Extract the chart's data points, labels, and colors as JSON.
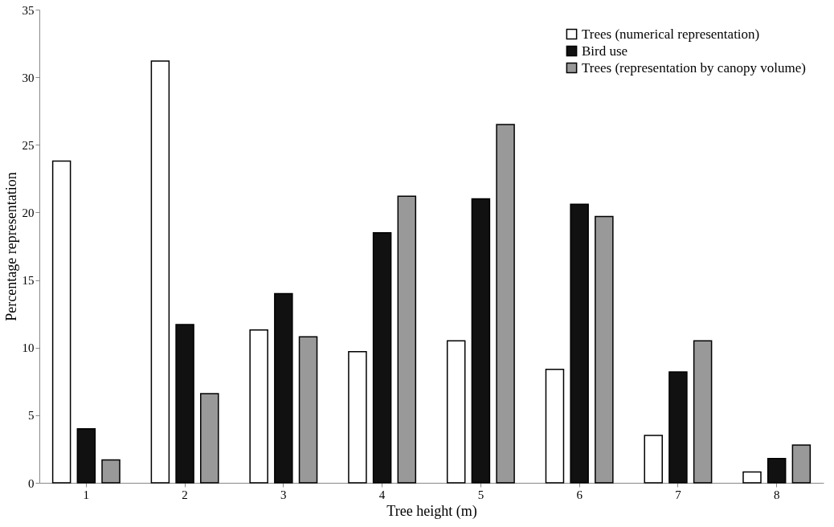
{
  "chart_data": {
    "type": "bar",
    "xlabel": "Tree height (m)",
    "ylabel": "Percentage representation",
    "categories": [
      "1",
      "2",
      "3",
      "4",
      "5",
      "6",
      "7",
      "8"
    ],
    "series": [
      {
        "name": "Trees (numerical representation)",
        "color": "#ffffff",
        "values": [
          23.8,
          31.2,
          11.3,
          9.7,
          10.5,
          8.4,
          3.5,
          0.8
        ]
      },
      {
        "name": "Bird use",
        "color": "#111111",
        "values": [
          4.0,
          11.7,
          14.0,
          18.5,
          21.0,
          20.6,
          8.2,
          1.8
        ]
      },
      {
        "name": "Trees (representation by canopy volume)",
        "color": "#999999",
        "values": [
          1.7,
          6.6,
          10.8,
          21.2,
          26.5,
          19.7,
          10.5,
          2.8
        ]
      }
    ],
    "ylim": [
      0,
      35
    ],
    "yticks": [
      0,
      5,
      10,
      15,
      20,
      25,
      30,
      35
    ],
    "grid": false,
    "legend": "top right"
  }
}
